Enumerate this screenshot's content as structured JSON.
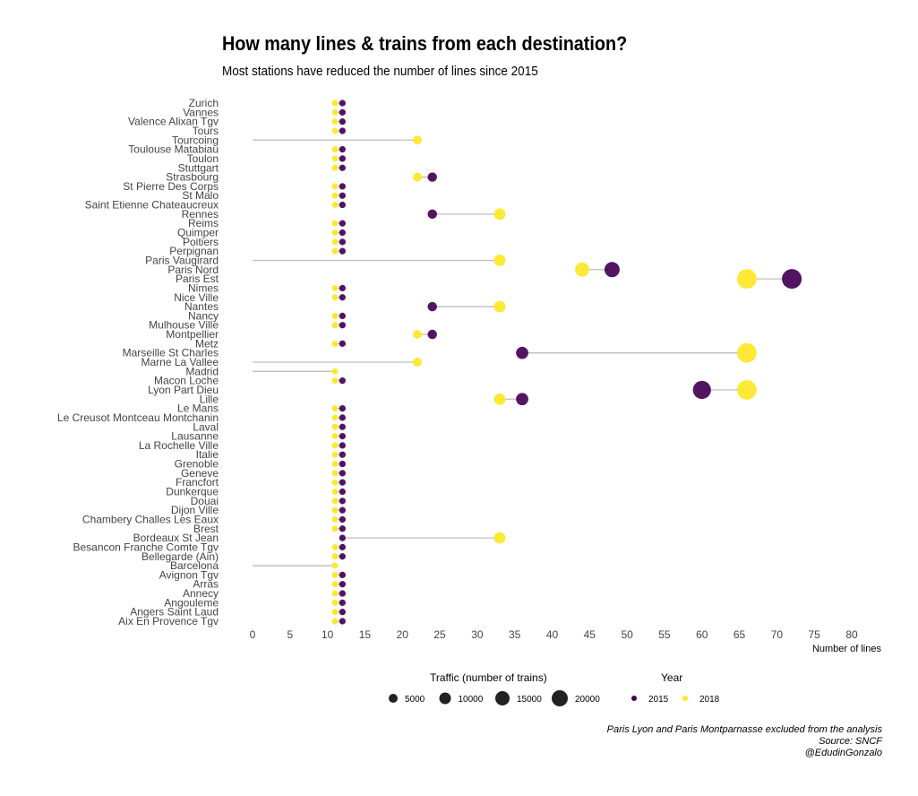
{
  "title": "How many lines & trains from each destination?",
  "subtitle": "Most stations have reduced the number of lines since 2015",
  "caption": [
    "Paris Lyon and Paris Montparnasse excluded from the analysis",
    "Source: SNCF",
    "@EdudinGonzalo"
  ],
  "colors": {
    "y2015": "#440154",
    "y2018": "#fde725",
    "segment": "#bdbdbd",
    "axis_text": "#444444"
  },
  "chart_data": {
    "type": "dumbbell",
    "xlabel": "Number of lines",
    "xlim": [
      0,
      80
    ],
    "xticks": [
      0,
      5,
      10,
      15,
      20,
      25,
      30,
      35,
      40,
      45,
      50,
      55,
      60,
      65,
      70,
      75,
      80
    ],
    "grid": false,
    "size_legend": {
      "title": "Traffic (number of trains)",
      "values": [
        5000,
        10000,
        15000,
        20000
      ]
    },
    "color_legend": {
      "title": "Year",
      "entries": [
        "2015",
        "2018"
      ]
    },
    "stations": [
      {
        "name": "Zurich",
        "y2015": 12,
        "y2018": 11
      },
      {
        "name": "Vannes",
        "y2015": 12,
        "y2018": 11
      },
      {
        "name": "Valence Alixan Tgv",
        "y2015": 12,
        "y2018": 11
      },
      {
        "name": "Tours",
        "y2015": 12,
        "y2018": 11
      },
      {
        "name": "Tourcoing",
        "y2015": 0,
        "y2018": 22
      },
      {
        "name": "Toulouse Matabiau",
        "y2015": 12,
        "y2018": 11
      },
      {
        "name": "Toulon",
        "y2015": 12,
        "y2018": 11
      },
      {
        "name": "Stuttgart",
        "y2015": 12,
        "y2018": 11
      },
      {
        "name": "Strasbourg",
        "y2015": 24,
        "y2018": 22
      },
      {
        "name": "St Pierre Des Corps",
        "y2015": 12,
        "y2018": 11
      },
      {
        "name": "St Malo",
        "y2015": 12,
        "y2018": 11
      },
      {
        "name": "Saint Etienne Chateaucreux",
        "y2015": 12,
        "y2018": 11
      },
      {
        "name": "Rennes",
        "y2015": 24,
        "y2018": 33
      },
      {
        "name": "Reims",
        "y2015": 12,
        "y2018": 11
      },
      {
        "name": "Quimper",
        "y2015": 12,
        "y2018": 11
      },
      {
        "name": "Poitiers",
        "y2015": 12,
        "y2018": 11
      },
      {
        "name": "Perpignan",
        "y2015": 12,
        "y2018": 11
      },
      {
        "name": "Paris Vaugirard",
        "y2015": 0,
        "y2018": 33
      },
      {
        "name": "Paris Nord",
        "y2015": 48,
        "y2018": 44
      },
      {
        "name": "Paris Est",
        "y2015": 72,
        "y2018": 66
      },
      {
        "name": "Nimes",
        "y2015": 12,
        "y2018": 11
      },
      {
        "name": "Nice Ville",
        "y2015": 12,
        "y2018": 11
      },
      {
        "name": "Nantes",
        "y2015": 24,
        "y2018": 33
      },
      {
        "name": "Nancy",
        "y2015": 12,
        "y2018": 11
      },
      {
        "name": "Mulhouse Ville",
        "y2015": 12,
        "y2018": 11
      },
      {
        "name": "Montpellier",
        "y2015": 24,
        "y2018": 22
      },
      {
        "name": "Metz",
        "y2015": 12,
        "y2018": 11
      },
      {
        "name": "Marseille St Charles",
        "y2015": 36,
        "y2018": 66
      },
      {
        "name": "Marne La Vallee",
        "y2015": 0,
        "y2018": 22
      },
      {
        "name": "Madrid",
        "y2015": 0,
        "y2018": 11
      },
      {
        "name": "Macon Loche",
        "y2015": 12,
        "y2018": 11
      },
      {
        "name": "Lyon Part Dieu",
        "y2015": 60,
        "y2018": 66
      },
      {
        "name": "Lille",
        "y2015": 36,
        "y2018": 33
      },
      {
        "name": "Le Mans",
        "y2015": 12,
        "y2018": 11
      },
      {
        "name": "Le Creusot Montceau Montchanin",
        "y2015": 12,
        "y2018": 11
      },
      {
        "name": "Laval",
        "y2015": 12,
        "y2018": 11
      },
      {
        "name": "Lausanne",
        "y2015": 12,
        "y2018": 11
      },
      {
        "name": "La Rochelle Ville",
        "y2015": 12,
        "y2018": 11
      },
      {
        "name": "Italie",
        "y2015": 12,
        "y2018": 11
      },
      {
        "name": "Grenoble",
        "y2015": 12,
        "y2018": 11
      },
      {
        "name": "Geneve",
        "y2015": 12,
        "y2018": 11
      },
      {
        "name": "Francfort",
        "y2015": 12,
        "y2018": 11
      },
      {
        "name": "Dunkerque",
        "y2015": 12,
        "y2018": 11
      },
      {
        "name": "Douai",
        "y2015": 12,
        "y2018": 11
      },
      {
        "name": "Dijon Ville",
        "y2015": 12,
        "y2018": 11
      },
      {
        "name": "Chambery Challes Les Eaux",
        "y2015": 12,
        "y2018": 11
      },
      {
        "name": "Brest",
        "y2015": 12,
        "y2018": 11
      },
      {
        "name": "Bordeaux St Jean",
        "y2015": 12,
        "y2018": 33
      },
      {
        "name": "Besancon Franche Comte Tgv",
        "y2015": 12,
        "y2018": 11
      },
      {
        "name": "Bellegarde (Ain)",
        "y2015": 12,
        "y2018": 11
      },
      {
        "name": "Barcelona",
        "y2015": 0,
        "y2018": 11
      },
      {
        "name": "Avignon Tgv",
        "y2015": 12,
        "y2018": 11
      },
      {
        "name": "Arras",
        "y2015": 12,
        "y2018": 11
      },
      {
        "name": "Annecy",
        "y2015": 12,
        "y2018": 11
      },
      {
        "name": "Angouleme",
        "y2015": 12,
        "y2018": 11
      },
      {
        "name": "Angers Saint Laud",
        "y2015": 12,
        "y2018": 11
      },
      {
        "name": "Aix En Provence Tgv",
        "y2015": 12,
        "y2018": 11
      }
    ]
  }
}
